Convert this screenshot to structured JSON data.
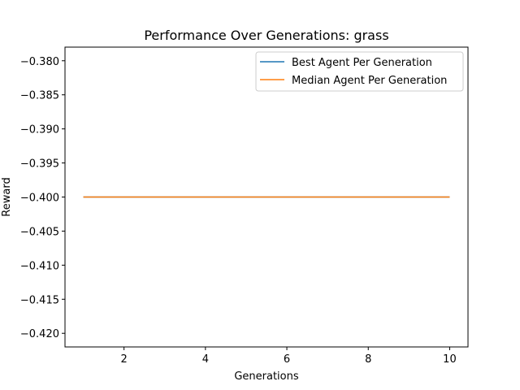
{
  "chart_data": {
    "type": "line",
    "title": "Performance Over Generations: grass",
    "xlabel": "Generations",
    "ylabel": "Reward",
    "xlim": [
      0.55,
      10.45
    ],
    "ylim": [
      -0.422,
      -0.378
    ],
    "x_ticks": [
      2,
      4,
      6,
      8,
      10
    ],
    "y_ticks": [
      -0.38,
      -0.385,
      -0.39,
      -0.395,
      -0.4,
      -0.405,
      -0.41,
      -0.415,
      -0.42
    ],
    "x_tick_labels": [
      "2",
      "4",
      "6",
      "8",
      "10"
    ],
    "y_tick_labels": [
      "−0.380",
      "−0.385",
      "−0.390",
      "−0.395",
      "−0.400",
      "−0.405",
      "−0.410",
      "−0.415",
      "−0.420"
    ],
    "grid": false,
    "legend_position": "top-right",
    "x": [
      1,
      2,
      3,
      4,
      5,
      6,
      7,
      8,
      9,
      10
    ],
    "series": [
      {
        "name": "Best Agent Per Generation",
        "color": "#1f77b4",
        "values": [
          -0.4,
          -0.4,
          -0.4,
          -0.4,
          -0.4,
          -0.4,
          -0.4,
          -0.4,
          -0.4,
          -0.4
        ]
      },
      {
        "name": "Median Agent Per Generation",
        "color": "#ff7f0e",
        "values": [
          -0.4,
          -0.4,
          -0.4,
          -0.4,
          -0.4,
          -0.4,
          -0.4,
          -0.4,
          -0.4,
          -0.4
        ]
      }
    ]
  }
}
